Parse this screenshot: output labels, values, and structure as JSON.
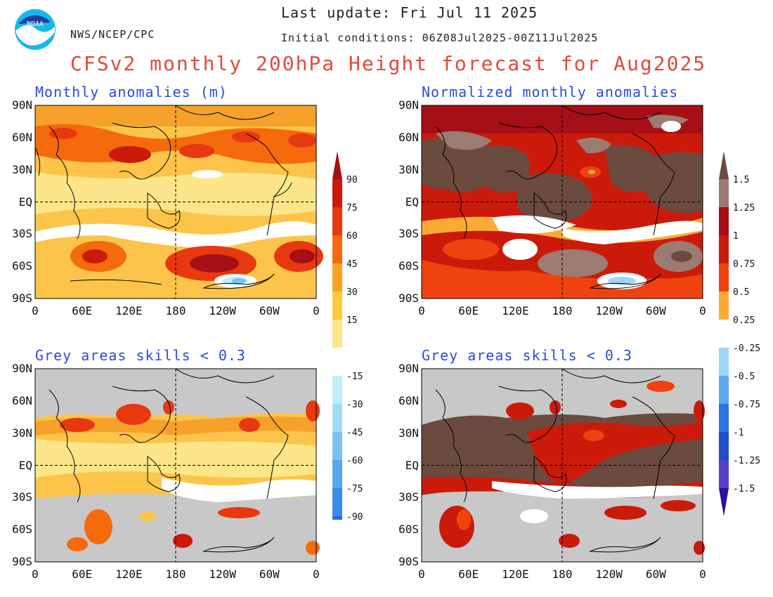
{
  "header": {
    "agency": "NWS/NCEP/CPC",
    "last_update": "Last update: Fri Jul 11 2025",
    "initial_conditions": "Initial conditions: 06Z08Jul2025-00Z11Jul2025",
    "title": "CFSv2 monthly 200hPa Height forecast for Aug2025",
    "logo_text": "NOAA"
  },
  "panels": [
    {
      "title": "Monthly anomalies (m)"
    },
    {
      "title": "Normalized monthly anomalies"
    },
    {
      "title": "Grey areas skills < 0.3"
    },
    {
      "title": "Grey areas skills < 0.3"
    }
  ],
  "axes": {
    "lat_labels": [
      "90N",
      "60N",
      "30N",
      "EQ",
      "30S",
      "60S",
      "90S"
    ],
    "lon_labels": [
      "0",
      "60E",
      "120E",
      "180",
      "120W",
      "60W",
      "0"
    ]
  },
  "colorbar_height": {
    "labels": [
      "90",
      "75",
      "60",
      "45",
      "30",
      "15",
      "-15",
      "-30",
      "-45",
      "-60",
      "-75",
      "-90"
    ],
    "positive_colors": [
      "#a50f15",
      "#cc1a0a",
      "#e8380f",
      "#f46a0c",
      "#f8a221",
      "#fbca3f",
      "#fde68a"
    ],
    "negative_colors": [
      "#bfeff7",
      "#a2dcf4",
      "#7cc2f1",
      "#58a6ee",
      "#3b8bea",
      "#2070e0",
      "#1450c8"
    ]
  },
  "colorbar_normalized": {
    "labels": [
      "1.5",
      "1.25",
      "1",
      "0.75",
      "0.5",
      "0.25",
      "-0.25",
      "-0.5",
      "-0.75",
      "-1",
      "-1.25",
      "-1.5"
    ],
    "positive_colors": [
      "#6b4a3f",
      "#9c7b72",
      "#a50f15",
      "#cc1a0a",
      "#f0420e",
      "#fbaa33"
    ],
    "negative_colors": [
      "#9fd5f5",
      "#5da8ef",
      "#2c74e0",
      "#1c4fc9",
      "#5540c8",
      "#2a0fa0"
    ]
  },
  "colors": {
    "title": "#e04a3a",
    "panel_title": "#2b4be0",
    "grey_mask": "#c8c8c8"
  }
}
